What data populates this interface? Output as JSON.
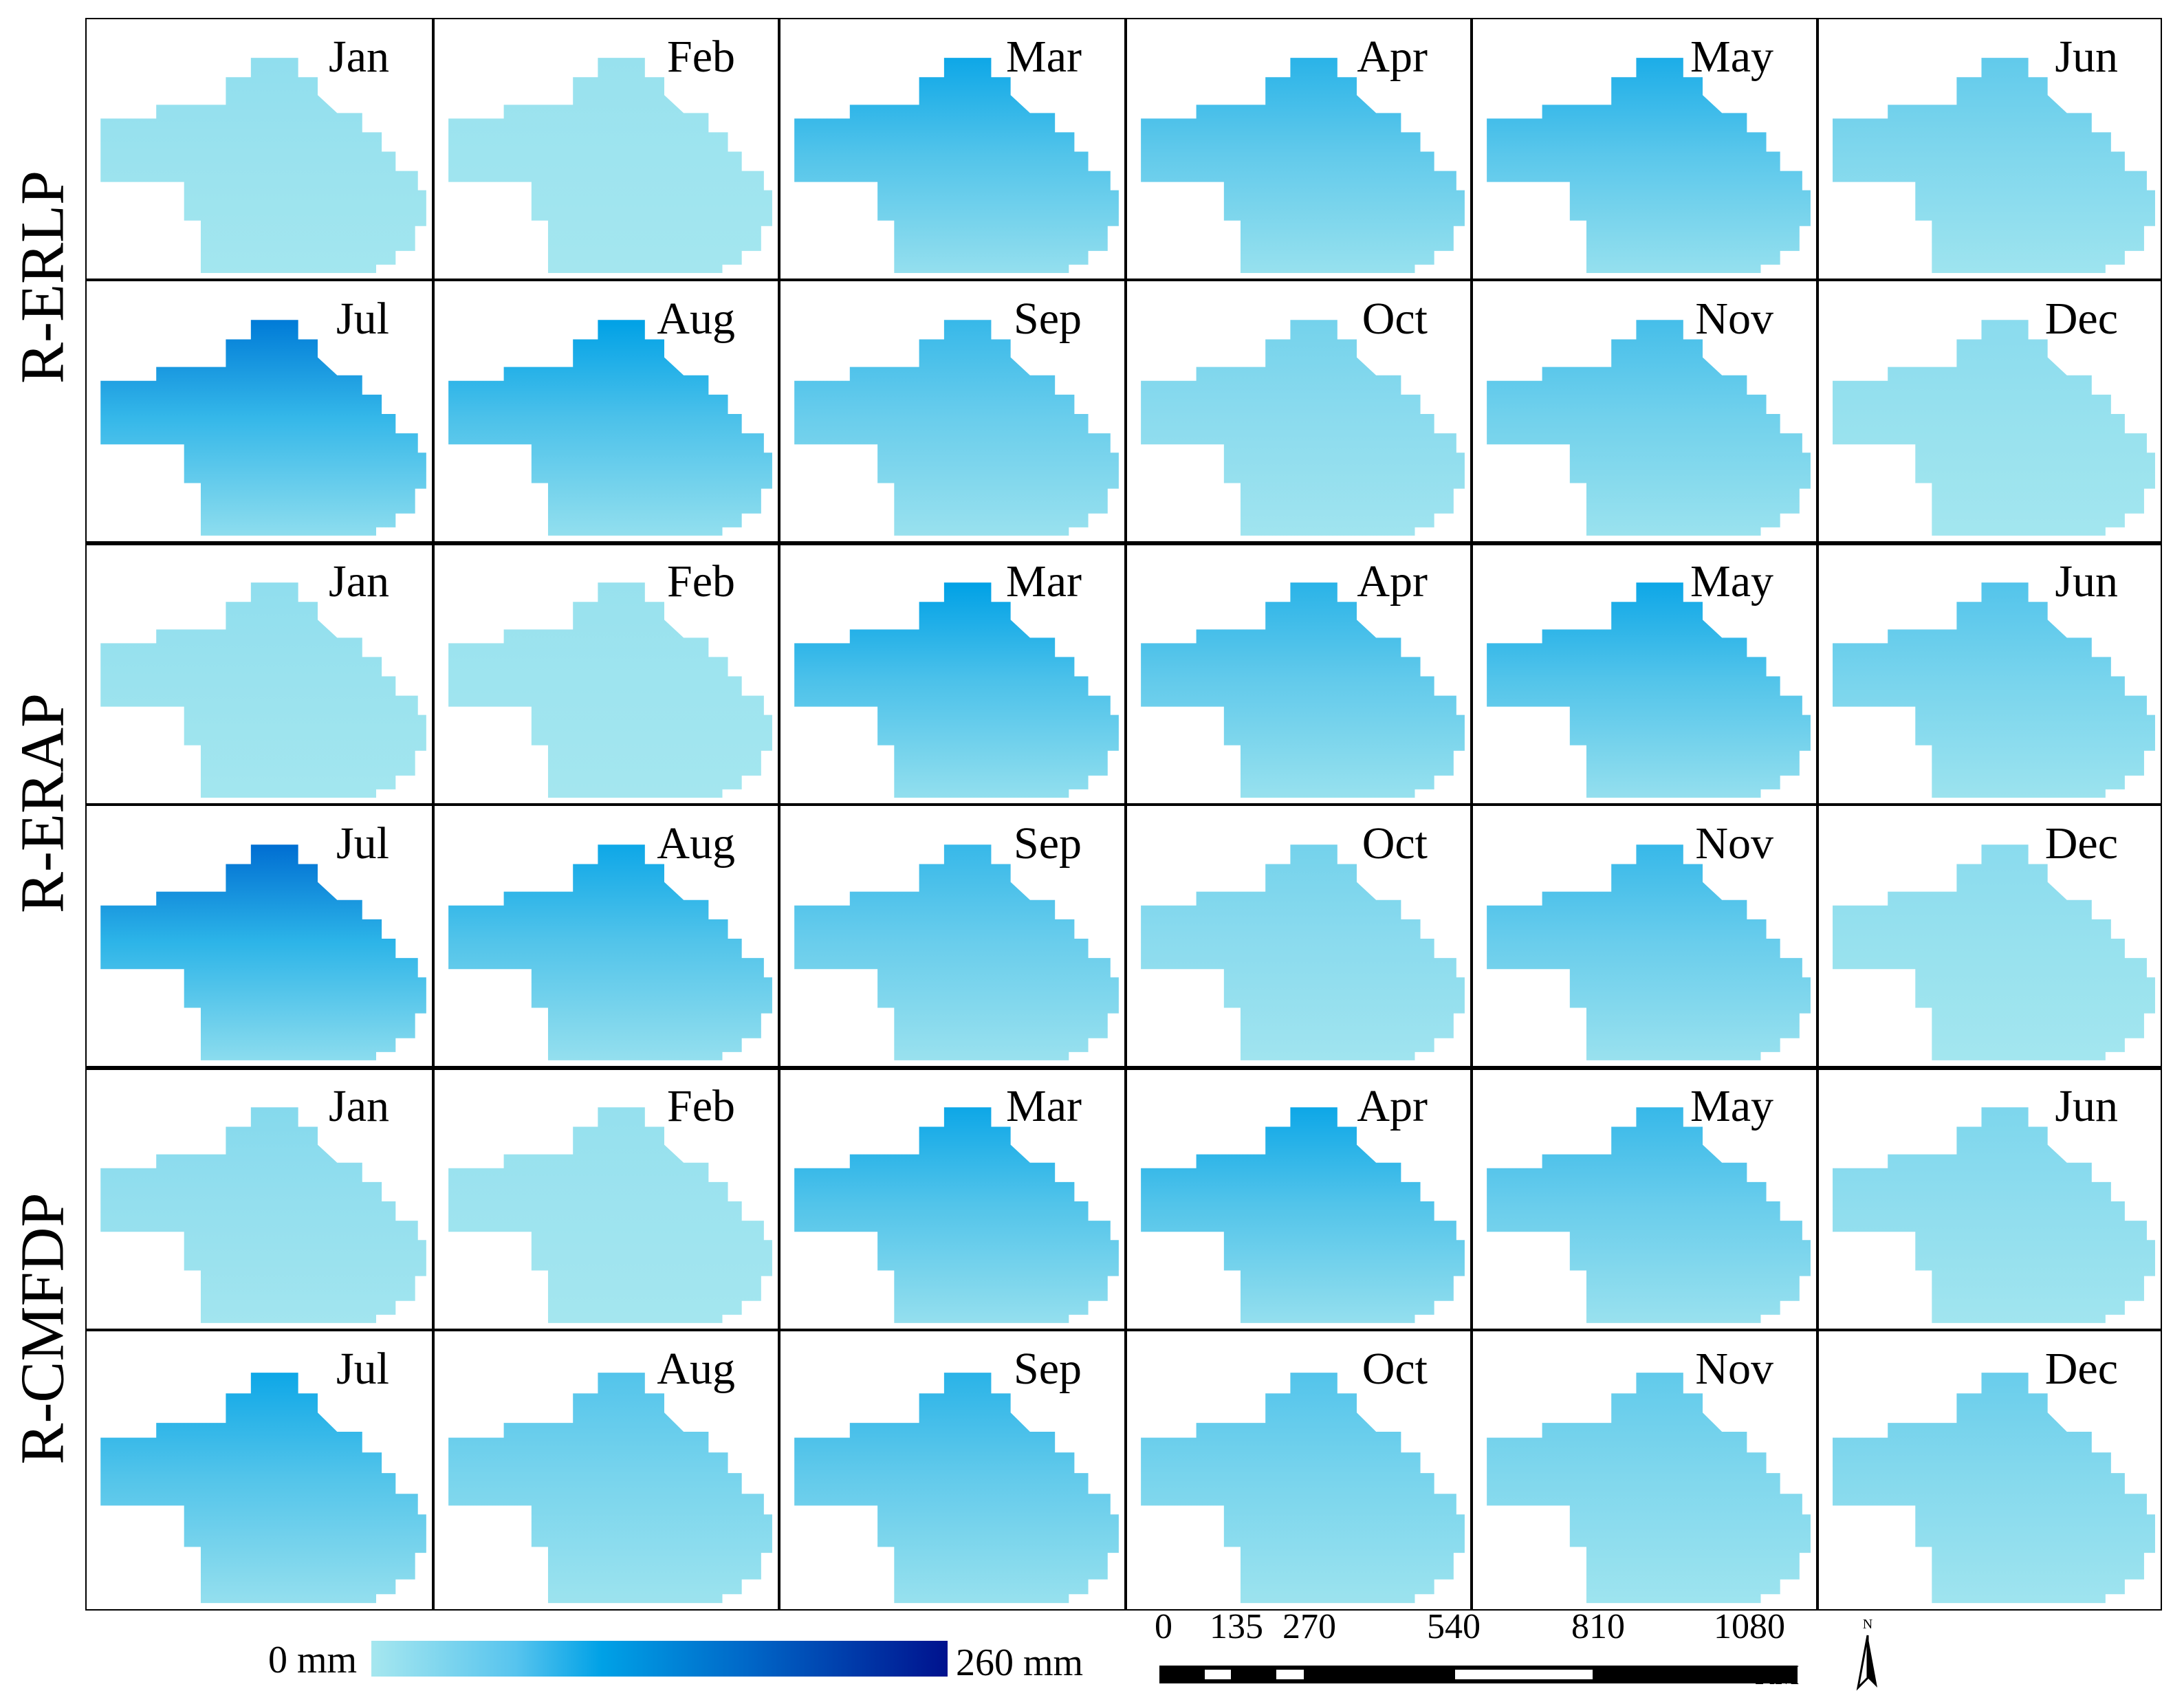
{
  "months": [
    "Jan",
    "Feb",
    "Mar",
    "Apr",
    "May",
    "Jun",
    "Jul",
    "Aug",
    "Sep",
    "Oct",
    "Nov",
    "Dec"
  ],
  "row_labels": [
    "R-ERLP",
    "R-ERAP",
    "R-CMFDP"
  ],
  "legend": {
    "min_label": "0 mm",
    "max_label": "260 mm",
    "colors": [
      "#a6e7ef",
      "#57c4ee",
      "#00a1e6",
      "#0068c8",
      "#00128e"
    ]
  },
  "scale_bar": {
    "ticks": [
      "0",
      "135",
      "270",
      "540",
      "810",
      "1080"
    ],
    "unit": "KM"
  },
  "north_label": "N",
  "map_data": {
    "datasets": [
      "R-ERLP",
      "R-ERAP",
      "R-CMFDP"
    ],
    "relative_intensity": {
      "R-ERLP": [
        0.08,
        0.05,
        0.55,
        0.45,
        0.5,
        0.25,
        0.75,
        0.6,
        0.4,
        0.18,
        0.35,
        0.1
      ],
      "R-ERAP": [
        0.08,
        0.05,
        0.6,
        0.45,
        0.55,
        0.3,
        0.8,
        0.55,
        0.4,
        0.18,
        0.4,
        0.1
      ],
      "R-CMFDP": [
        0.12,
        0.06,
        0.55,
        0.55,
        0.4,
        0.15,
        0.55,
        0.3,
        0.45,
        0.3,
        0.25,
        0.22
      ]
    }
  }
}
